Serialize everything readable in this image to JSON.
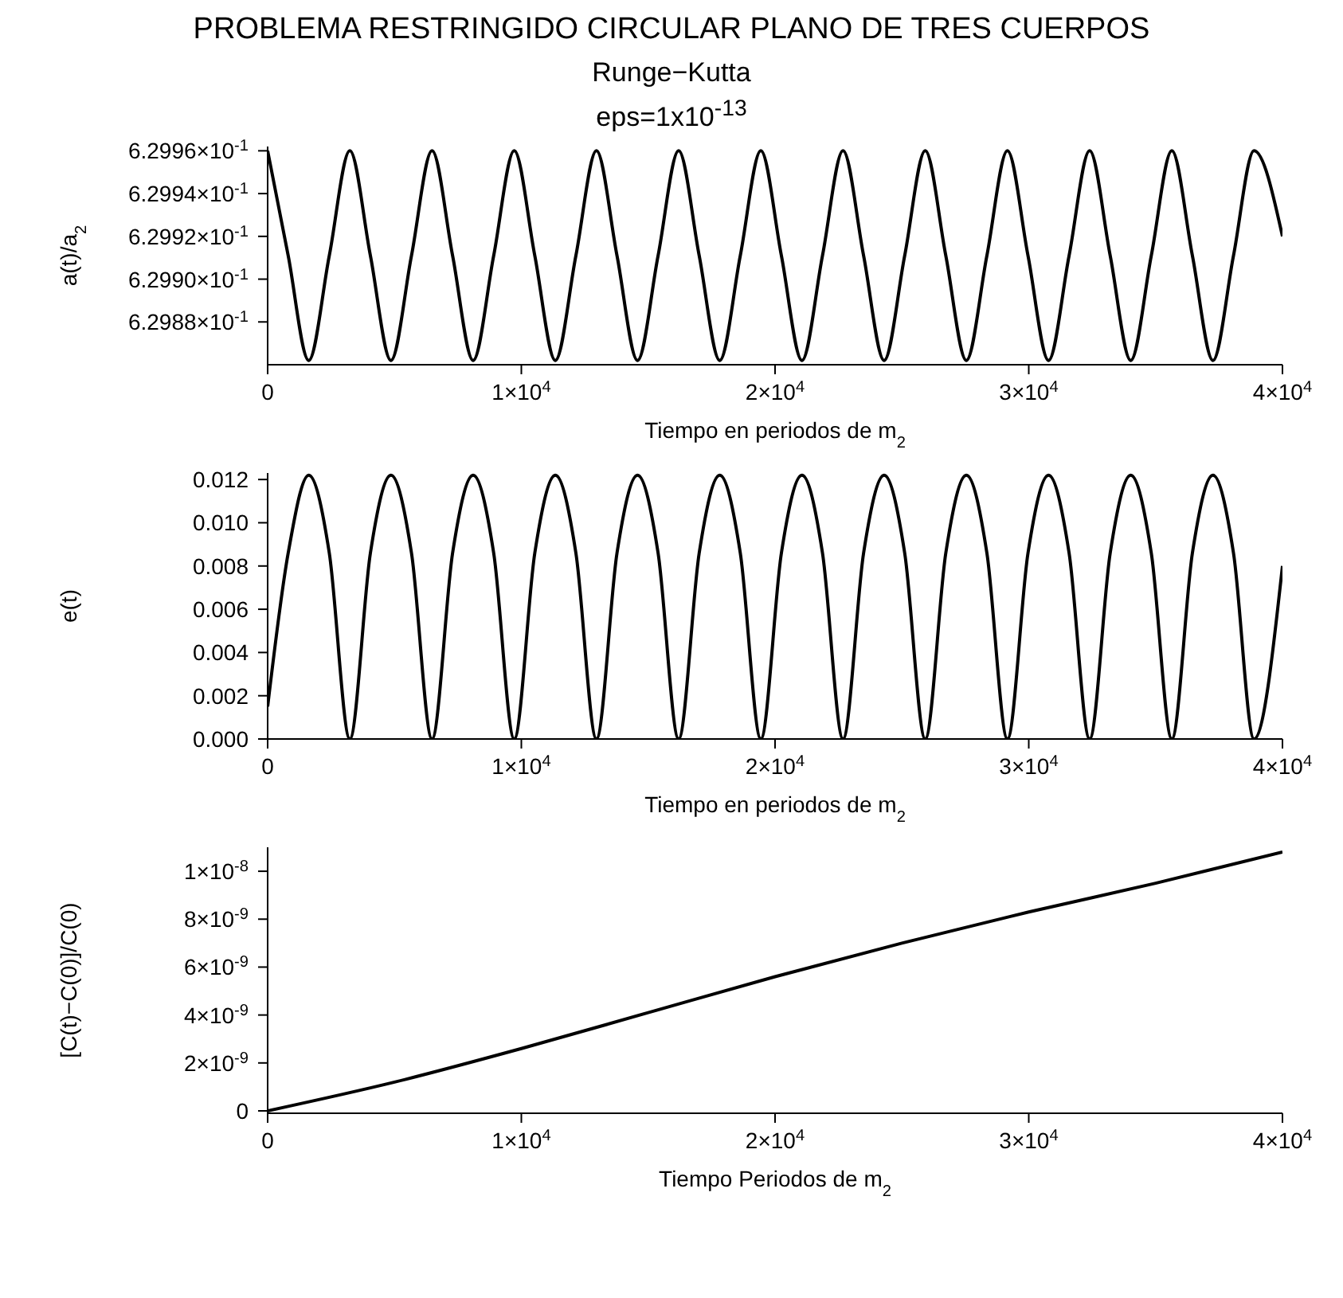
{
  "chart_data": [
    {
      "type": "line",
      "title": "PROBLEMA RESTRINGIDO CIRCULAR PLANO DE TRES CUERPOS",
      "subtitle": "Runge−Kutta",
      "annotations": [
        "eps=1x10$^{-13}$"
      ],
      "xlabel": "Tiempo en periodos de m$_{2}$",
      "ylabel": "a(t)/a$_{2}$",
      "x": [
        0,
        810,
        1620,
        2430,
        3240,
        4050,
        4860,
        5670,
        6480,
        7290,
        8100,
        8910,
        9720,
        10530,
        11340,
        12150,
        12960,
        13770,
        14580,
        15390,
        16200,
        17010,
        17820,
        18630,
        19440,
        20250,
        21060,
        21870,
        22680,
        23490,
        24300,
        25110,
        25920,
        26730,
        27540,
        28350,
        29160,
        29970,
        30780,
        31590,
        32400,
        33210,
        34020,
        34830,
        35640,
        36450,
        37260,
        38070,
        38880,
        40000
      ],
      "series": [
        {
          "color": "#000000",
          "values": [
            0.62996,
            0.629911,
            0.629862,
            0.629911,
            0.62996,
            0.629911,
            0.629862,
            0.629911,
            0.62996,
            0.629911,
            0.629862,
            0.629911,
            0.62996,
            0.629911,
            0.629862,
            0.629911,
            0.62996,
            0.629911,
            0.629862,
            0.629911,
            0.62996,
            0.629911,
            0.629862,
            0.629911,
            0.62996,
            0.629911,
            0.629862,
            0.629911,
            0.62996,
            0.629911,
            0.629862,
            0.629911,
            0.62996,
            0.629911,
            0.629862,
            0.629911,
            0.62996,
            0.629911,
            0.629862,
            0.629911,
            0.62996,
            0.629911,
            0.629862,
            0.629911,
            0.62996,
            0.629911,
            0.629862,
            0.629911,
            0.62996,
            0.62992
          ]
        }
      ],
      "xlim": [
        0,
        40000
      ],
      "xticks": [
        {
          "value": 0,
          "label": "0"
        },
        {
          "value": 10000,
          "label": "1×10$^{4}$"
        },
        {
          "value": 20000,
          "label": "2×10$^{4}$"
        },
        {
          "value": 30000,
          "label": "3×10$^{4}$"
        },
        {
          "value": 40000,
          "label": "4×10$^{4}$"
        }
      ],
      "ylim": [
        0.62986,
        0.629962
      ],
      "yticks": [
        {
          "value": 0.62988,
          "label": "6.2988×10$^{-1}$"
        },
        {
          "value": 0.6299,
          "label": "6.2990×10$^{-1}$"
        },
        {
          "value": 0.62992,
          "label": "6.2992×10$^{-1}$"
        },
        {
          "value": 0.62994,
          "label": "6.2994×10$^{-1}$"
        },
        {
          "value": 0.62996,
          "label": "6.2996×10$^{-1}$"
        }
      ],
      "grid": false,
      "legend": false
    },
    {
      "type": "line",
      "xlabel": "Tiempo en periodos de m$_{2}$",
      "ylabel": "e(t)",
      "x": [
        0,
        810,
        1620,
        2430,
        3240,
        4050,
        4860,
        5670,
        6480,
        7290,
        8100,
        8910,
        9720,
        10530,
        11340,
        12150,
        12960,
        13770,
        14580,
        15390,
        16200,
        17010,
        17820,
        18630,
        19440,
        20250,
        21060,
        21870,
        22680,
        23490,
        24300,
        25110,
        25920,
        26730,
        27540,
        28350,
        29160,
        29970,
        30780,
        31590,
        32400,
        33210,
        34020,
        34830,
        35640,
        36450,
        37260,
        38070,
        38880,
        40000
      ],
      "series": [
        {
          "color": "#000000",
          "values": [
            0.0015,
            0.0086,
            0.0122,
            0.0086,
            0,
            0.0086,
            0.0122,
            0.0086,
            0,
            0.0086,
            0.0122,
            0.0086,
            0,
            0.0086,
            0.0122,
            0.0086,
            0,
            0.0086,
            0.0122,
            0.0086,
            0,
            0.0086,
            0.0122,
            0.0086,
            0,
            0.0086,
            0.0122,
            0.0086,
            0,
            0.0086,
            0.0122,
            0.0086,
            0,
            0.0086,
            0.0122,
            0.0086,
            0,
            0.0086,
            0.0122,
            0.0086,
            0,
            0.0086,
            0.0122,
            0.0086,
            0,
            0.0086,
            0.0122,
            0.0086,
            0,
            0.008
          ]
        }
      ],
      "xlim": [
        0,
        40000
      ],
      "xticks": [
        {
          "value": 0,
          "label": "0"
        },
        {
          "value": 10000,
          "label": "1×10$^{4}$"
        },
        {
          "value": 20000,
          "label": "2×10$^{4}$"
        },
        {
          "value": 30000,
          "label": "3×10$^{4}$"
        },
        {
          "value": 40000,
          "label": "4×10$^{4}$"
        }
      ],
      "ylim": [
        0,
        0.0123
      ],
      "yticks": [
        {
          "value": 0,
          "label": "0.000"
        },
        {
          "value": 0.002,
          "label": "0.002"
        },
        {
          "value": 0.004,
          "label": "0.004"
        },
        {
          "value": 0.006,
          "label": "0.006"
        },
        {
          "value": 0.008,
          "label": "0.008"
        },
        {
          "value": 0.01,
          "label": "0.010"
        },
        {
          "value": 0.012,
          "label": "0.012"
        }
      ],
      "grid": false,
      "legend": false
    },
    {
      "type": "line",
      "xlabel": "Tiempo Periodos de m$_{2}$",
      "ylabel": "[C(t)−C(0)]/C(0)",
      "x": [
        0,
        5000,
        10000,
        15000,
        20000,
        25000,
        30000,
        35000,
        40000
      ],
      "series": [
        {
          "color": "#000000",
          "values": [
            0,
            1.2e-09,
            2.6e-09,
            4.1e-09,
            5.6e-09,
            7e-09,
            8.3e-09,
            9.5e-09,
            1.08e-08
          ]
        }
      ],
      "xlim": [
        0,
        40000
      ],
      "xticks": [
        {
          "value": 0,
          "label": "0"
        },
        {
          "value": 10000,
          "label": "1×10$^{4}$"
        },
        {
          "value": 20000,
          "label": "2×10$^{4}$"
        },
        {
          "value": 30000,
          "label": "3×10$^{4}$"
        },
        {
          "value": 40000,
          "label": "4×10$^{4}$"
        }
      ],
      "ylim": [
        -1e-10,
        1.1e-08
      ],
      "yticks": [
        0,
        {
          "value": 2e-09,
          "label": "2×10$^{-9}$"
        },
        {
          "value": 4e-09,
          "label": "4×10$^{-9}$"
        },
        {
          "value": 6e-09,
          "label": "6×10$^{-9}$"
        },
        {
          "value": 8e-09,
          "label": "8×10$^{-9}$"
        },
        {
          "value": 1e-08,
          "label": "1×10$^{-8}$"
        }
      ],
      "grid": false,
      "legend": false
    }
  ]
}
